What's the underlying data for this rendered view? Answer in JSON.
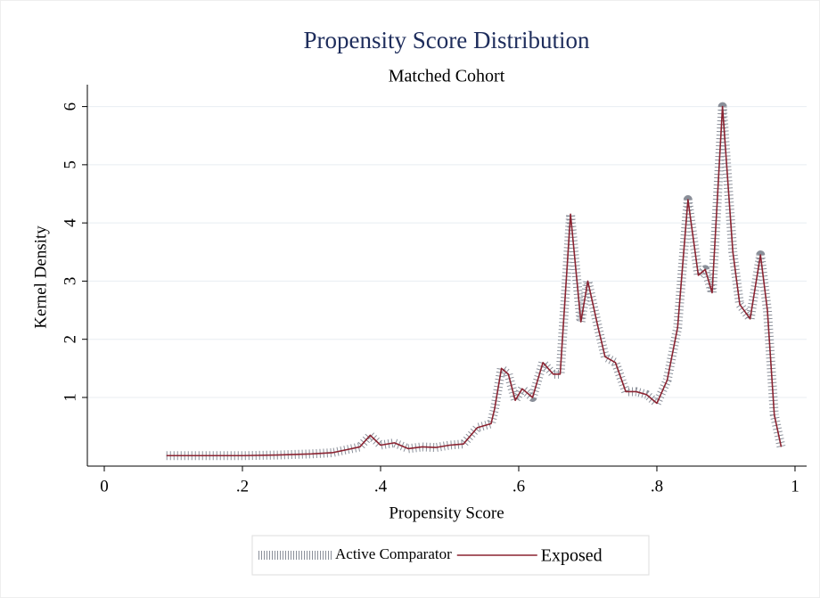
{
  "chart_data": {
    "type": "line",
    "title": "Propensity Score Distribution",
    "subtitle": "Matched Cohort",
    "x_label": "Propensity Score",
    "y_label": "Kernel Density",
    "x": [
      0.09,
      0.15,
      0.2,
      0.25,
      0.3,
      0.33,
      0.35,
      0.37,
      0.385,
      0.4,
      0.42,
      0.44,
      0.46,
      0.48,
      0.5,
      0.52,
      0.54,
      0.56,
      0.565,
      0.575,
      0.585,
      0.595,
      0.605,
      0.62,
      0.635,
      0.65,
      0.66,
      0.675,
      0.69,
      0.7,
      0.715,
      0.725,
      0.74,
      0.755,
      0.77,
      0.785,
      0.8,
      0.815,
      0.83,
      0.845,
      0.86,
      0.87,
      0.88,
      0.895,
      0.91,
      0.92,
      0.935,
      0.95,
      0.96,
      0.97,
      0.98
    ],
    "series": [
      {
        "name": "Active Comparator",
        "color": "#8a8f99",
        "style": "hatched",
        "values": [
          0.0,
          0.0,
          0.0,
          0.01,
          0.03,
          0.05,
          0.1,
          0.15,
          0.35,
          0.18,
          0.22,
          0.12,
          0.15,
          0.14,
          0.18,
          0.2,
          0.48,
          0.55,
          0.8,
          1.5,
          1.4,
          0.95,
          1.15,
          1.0,
          1.6,
          1.4,
          1.4,
          4.15,
          2.3,
          3.0,
          2.2,
          1.7,
          1.6,
          1.1,
          1.1,
          1.05,
          0.9,
          1.3,
          2.2,
          4.4,
          3.1,
          3.2,
          2.8,
          6.0,
          3.5,
          2.6,
          2.35,
          3.45,
          2.5,
          0.7,
          0.15
        ]
      },
      {
        "name": "Exposed",
        "color": "#8b2331",
        "style": "solid",
        "values": [
          0.0,
          0.0,
          0.0,
          0.01,
          0.03,
          0.05,
          0.1,
          0.15,
          0.35,
          0.18,
          0.22,
          0.12,
          0.15,
          0.14,
          0.18,
          0.2,
          0.48,
          0.55,
          0.8,
          1.5,
          1.4,
          0.95,
          1.15,
          1.0,
          1.6,
          1.4,
          1.4,
          4.15,
          2.3,
          3.0,
          2.2,
          1.7,
          1.6,
          1.1,
          1.1,
          1.05,
          0.9,
          1.3,
          2.2,
          4.4,
          3.1,
          3.2,
          2.8,
          6.0,
          3.5,
          2.6,
          2.35,
          3.45,
          2.5,
          0.7,
          0.15
        ]
      }
    ],
    "xlim": [
      -0.0245,
      1.0168
    ],
    "ylim": [
      -0.18,
      6.3
    ],
    "xticks": [
      0,
      {
        "value": 0.2,
        "label": ".2"
      },
      {
        "value": 0.4,
        "label": ".4"
      },
      {
        "value": 0.6,
        "label": ".6"
      },
      {
        "value": 0.8,
        "label": ".8"
      },
      1
    ],
    "yticks": [
      1,
      2,
      3,
      4,
      5,
      6
    ],
    "grid": true,
    "legend": "bottom"
  }
}
